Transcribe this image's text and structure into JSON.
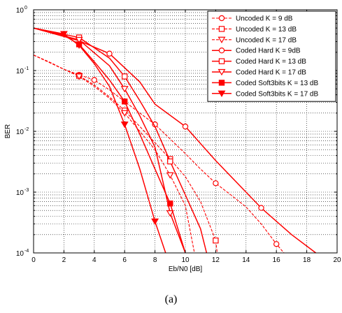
{
  "caption": "(a)",
  "chart_data": {
    "type": "line",
    "xlabel": "Eb/N0 [dB]",
    "ylabel": "BER",
    "xlim": [
      0,
      20
    ],
    "ylim": [
      0.0001,
      1
    ],
    "yscale": "log",
    "grid": true,
    "legend_position": "top-right",
    "x_ticks": [
      "0",
      "2",
      "4",
      "6",
      "8",
      "10",
      "12",
      "14",
      "16",
      "18",
      "20"
    ],
    "y_ticks": [
      {
        "base": "10",
        "exp": "0",
        "value": 1
      },
      {
        "base": "10",
        "exp": "-1",
        "value": 0.1
      },
      {
        "base": "10",
        "exp": "-2",
        "value": 0.01
      },
      {
        "base": "10",
        "exp": "-3",
        "value": 0.001
      },
      {
        "base": "10",
        "exp": "-4",
        "value": 0.0001
      }
    ],
    "color": "#ff0000",
    "series": [
      {
        "name": "Uncoded K = 9 dB",
        "marker": "circle",
        "dash": "dashed",
        "points": [
          [
            0,
            0.18
          ],
          [
            1,
            0.14
          ],
          [
            2,
            0.105
          ],
          [
            3,
            0.085
          ],
          [
            4,
            0.07
          ],
          [
            5,
            0.048
          ],
          [
            6,
            0.031
          ],
          [
            7,
            0.02
          ],
          [
            8,
            0.013
          ],
          [
            9,
            0.0075
          ],
          [
            10,
            0.0043
          ],
          [
            11,
            0.0024
          ],
          [
            12,
            0.0014
          ],
          [
            13,
            0.0009
          ],
          [
            14,
            0.00057
          ],
          [
            15,
            0.0003
          ],
          [
            16,
            0.00014
          ],
          [
            16.5,
            0.0001
          ]
        ],
        "marker_x": [
          3,
          4,
          8,
          12,
          16
        ]
      },
      {
        "name": "Uncoded K = 13 dB",
        "marker": "square",
        "dash": "dashed",
        "points": [
          [
            0,
            0.18
          ],
          [
            2,
            0.105
          ],
          [
            3,
            0.082
          ],
          [
            4,
            0.058
          ],
          [
            5,
            0.037
          ],
          [
            6,
            0.022
          ],
          [
            7,
            0.012
          ],
          [
            8,
            0.0065
          ],
          [
            9,
            0.0035
          ],
          [
            10,
            0.0018
          ],
          [
            11,
            0.0007
          ],
          [
            12,
            0.00016
          ],
          [
            12.1,
            0.0001
          ]
        ],
        "marker_x": [
          3,
          6,
          9,
          12
        ]
      },
      {
        "name": "Uncoded K = 17 dB",
        "marker": "triangle-down",
        "dash": "dashed",
        "points": [
          [
            0,
            0.18
          ],
          [
            2,
            0.105
          ],
          [
            3,
            0.08
          ],
          [
            4,
            0.055
          ],
          [
            5,
            0.035
          ],
          [
            6,
            0.02
          ],
          [
            7,
            0.01
          ],
          [
            8,
            0.005
          ],
          [
            9,
            0.0019
          ],
          [
            10,
            0.0006
          ],
          [
            10.6,
            0.0001
          ]
        ],
        "marker_x": [
          3,
          6,
          9
        ]
      },
      {
        "name": "Coded Hard K = 9dB",
        "marker": "circle",
        "dash": "solid",
        "points": [
          [
            0,
            0.5
          ],
          [
            3,
            0.31
          ],
          [
            5,
            0.19
          ],
          [
            7,
            0.065
          ],
          [
            8,
            0.028
          ],
          [
            10,
            0.012
          ],
          [
            12,
            0.0033
          ],
          [
            15,
            0.00055
          ],
          [
            17,
            0.0002
          ],
          [
            18.6,
            0.0001
          ]
        ],
        "marker_x": [
          5,
          10,
          15
        ]
      },
      {
        "name": "Coded Hard K = 13 dB",
        "marker": "square",
        "dash": "solid",
        "points": [
          [
            0,
            0.5
          ],
          [
            3,
            0.35
          ],
          [
            5,
            0.16
          ],
          [
            6,
            0.08
          ],
          [
            7,
            0.032
          ],
          [
            8,
            0.012
          ],
          [
            9,
            0.0032
          ],
          [
            10,
            0.0009
          ],
          [
            11,
            0.00025
          ],
          [
            11.4,
            0.0001
          ]
        ],
        "marker_x": [
          3,
          6,
          9
        ]
      },
      {
        "name": "Coded Hard K = 17 dB",
        "marker": "triangle-down",
        "dash": "solid",
        "points": [
          [
            0,
            0.5
          ],
          [
            3,
            0.32
          ],
          [
            5,
            0.12
          ],
          [
            6,
            0.05
          ],
          [
            7,
            0.018
          ],
          [
            8,
            0.0055
          ],
          [
            9,
            0.00045
          ],
          [
            10,
            0.0001
          ]
        ],
        "marker_x": [
          3,
          6,
          9
        ]
      },
      {
        "name": "Coded Soft3bits K = 13 dB",
        "marker": "square-filled",
        "dash": "solid",
        "points": [
          [
            0,
            0.5
          ],
          [
            2,
            0.38
          ],
          [
            3,
            0.27
          ],
          [
            4,
            0.14
          ],
          [
            5,
            0.07
          ],
          [
            6,
            0.031
          ],
          [
            7,
            0.009
          ],
          [
            8,
            0.0024
          ],
          [
            9,
            0.00065
          ],
          [
            10,
            0.0001
          ]
        ],
        "marker_x": [
          3,
          6,
          9
        ]
      },
      {
        "name": "Coded Soft3bits K = 17 dB",
        "marker": "triangle-down-filled",
        "dash": "solid",
        "points": [
          [
            0,
            0.5
          ],
          [
            2,
            0.4
          ],
          [
            3,
            0.26
          ],
          [
            4,
            0.13
          ],
          [
            5,
            0.055
          ],
          [
            6,
            0.013
          ],
          [
            7,
            0.0024
          ],
          [
            8,
            0.00033
          ],
          [
            8.7,
            0.0001
          ]
        ],
        "marker_x": [
          2,
          3,
          6,
          8
        ]
      }
    ]
  }
}
